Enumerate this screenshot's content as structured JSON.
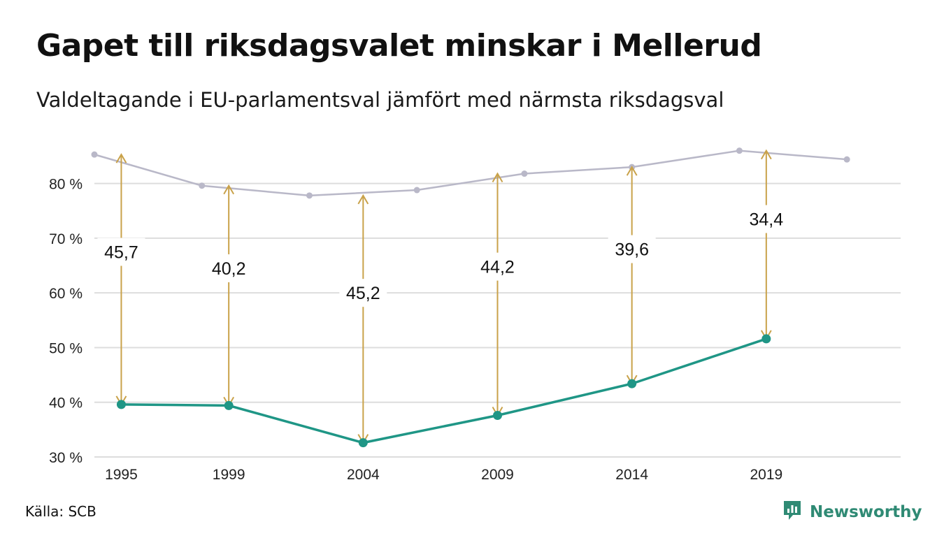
{
  "header": {
    "title": "Gapet till riksdagsvalet minskar i Mellerud",
    "subtitle": "Valdeltagande i EU-parlamentsval jämfört med närmsta riksdagsval"
  },
  "footer": {
    "source": "Källa: SCB",
    "brand": "Newsworthy"
  },
  "colors": {
    "eu_line": "#1f9686",
    "riksdag_line": "#b9b8c8",
    "gap_arrow": "#c9a24a",
    "grid": "#dddddd",
    "brand": "#2f8a74"
  },
  "chart_data": {
    "type": "line",
    "title": "Gapet till riksdagsvalet minskar i Mellerud",
    "subtitle": "Valdeltagande i EU-parlamentsval jämfört med närmsta riksdagsval",
    "xlim": [
      1994,
      2024
    ],
    "ylim": [
      30,
      88
    ],
    "y_ticks": [
      30,
      40,
      50,
      60,
      70,
      80
    ],
    "y_tick_labels": [
      "30 %",
      "40 %",
      "50 %",
      "60 %",
      "70 %",
      "80 %"
    ],
    "x_ticks": [
      1995,
      1999,
      2004,
      2009,
      2014,
      2019
    ],
    "x_tick_labels": [
      "1995",
      "1999",
      "2004",
      "2009",
      "2014",
      "2019"
    ],
    "grid": true,
    "legend": "none",
    "series": [
      {
        "x": [
          1995,
          1999,
          2004,
          2009,
          2014,
          2019
        ],
        "y": [
          39.6,
          39.4,
          32.6,
          37.6,
          43.4,
          51.6
        ]
      },
      {
        "x": [
          1994,
          1998,
          2002,
          2006,
          2010,
          2014,
          2018,
          2022
        ],
        "y": [
          85.3,
          79.6,
          77.8,
          78.8,
          81.8,
          83.0,
          86.0,
          84.4
        ]
      }
    ],
    "gaps": [
      {
        "x": 1995,
        "from": 39.6,
        "to": 85.3,
        "label": "45,7",
        "label_y": 67.5
      },
      {
        "x": 1999,
        "from": 39.4,
        "to": 79.6,
        "label": "40,2",
        "label_y": 64.5
      },
      {
        "x": 2004,
        "from": 32.6,
        "to": 77.8,
        "label": "45,2",
        "label_y": 60.0
      },
      {
        "x": 2009,
        "from": 37.6,
        "to": 81.8,
        "label": "44,2",
        "label_y": 64.8
      },
      {
        "x": 2014,
        "from": 43.4,
        "to": 83.0,
        "label": "39,6",
        "label_y": 68.0
      },
      {
        "x": 2019,
        "from": 51.6,
        "to": 86.0,
        "label": "34,4",
        "label_y": 73.5
      }
    ]
  }
}
